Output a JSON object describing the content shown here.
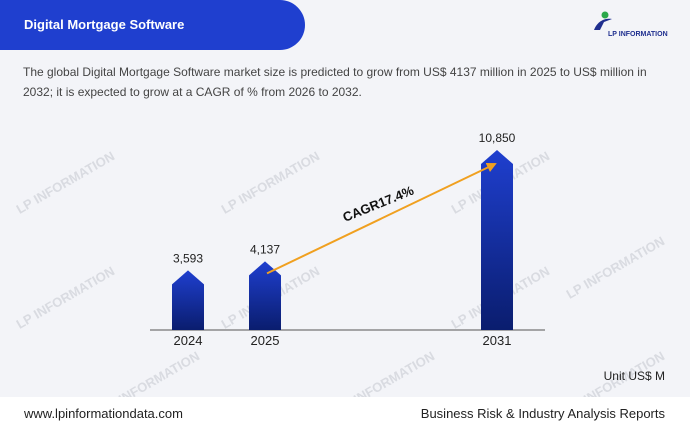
{
  "header": {
    "title": "Digital Mortgage Software"
  },
  "logo": {
    "text": "LP INFORMATION",
    "icon": "lp-logo-icon"
  },
  "description": "The global Digital Mortgage Software market size is predicted to grow from US$ 4137 million in 2025 to US$ million in 2032; it is expected to grow at a CAGR of % from 2026 to 2032.",
  "watermark": "LP INFORMATION",
  "chart_data": {
    "type": "bar",
    "categories": [
      "2024",
      "2025",
      "2031"
    ],
    "values": [
      3593,
      4137,
      10850
    ],
    "value_labels": [
      "3,593",
      "4,137",
      "10,850"
    ],
    "annotation": "CAGR17.4%",
    "unit": "Unit US$ M",
    "ylim": [
      0,
      11000
    ],
    "grid": false,
    "colors": {
      "bar_top": "#1f3fcf",
      "bar_bottom": "#0a1d6e",
      "arrow": "#f0a020"
    }
  },
  "footer": {
    "website": "www.lpinformationdata.com",
    "tagline": "Business Risk & Industry Analysis Reports"
  }
}
